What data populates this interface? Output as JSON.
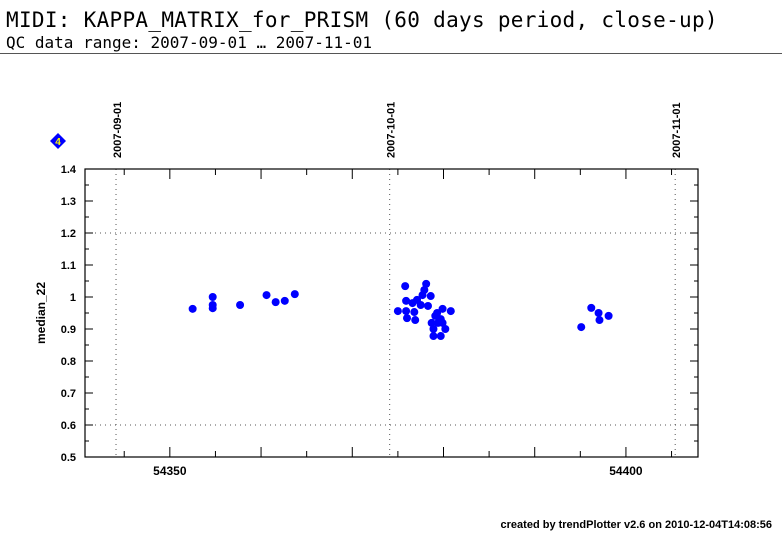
{
  "header": {
    "title": "MIDI: KAPPA_MATRIX_for_PRISM (60 days period, close-up)",
    "subtitle": "QC data range: 2007-09-01 … 2007-11-01"
  },
  "footer": "created by trendPlotter v2.6 on 2010-12-04T14:08:56",
  "marker_label": "4",
  "colors": {
    "points": "#0000ff",
    "marker_fill": "#0000ff",
    "marker_text": "#ffff00"
  },
  "chart_data": {
    "type": "scatter",
    "xlabel": "",
    "ylabel": "median_22",
    "xlim": [
      54340.7,
      54407.9
    ],
    "ylim": [
      0.5,
      1.4
    ],
    "xticks": [
      54350,
      54400
    ],
    "yticks": [
      0.5,
      0.6,
      0.7,
      0.8,
      0.9,
      1,
      1.1,
      1.2,
      1.3,
      1.4
    ],
    "yticklabels": [
      "0.5",
      "0.6",
      "0.7",
      "0.8",
      "0.9",
      "1",
      "1.1",
      "1.2",
      "1.3",
      "1.4"
    ],
    "hlines": [
      1.2,
      0.6
    ],
    "date_markers": [
      {
        "x": 54344.1,
        "label": "2007-09-01"
      },
      {
        "x": 54374.1,
        "label": "2007-10-01"
      },
      {
        "x": 54405.4,
        "label": "2007-11-01"
      }
    ],
    "points": [
      [
        54352.5,
        0.963
      ],
      [
        54354.7,
        1.0
      ],
      [
        54354.7,
        0.975
      ],
      [
        54354.7,
        0.965
      ],
      [
        54357.7,
        0.975
      ],
      [
        54360.6,
        1.006
      ],
      [
        54361.6,
        0.984
      ],
      [
        54362.6,
        0.988
      ],
      [
        54363.7,
        1.009
      ],
      [
        54375.0,
        0.956
      ],
      [
        54375.8,
        1.034
      ],
      [
        54375.9,
        0.988
      ],
      [
        54375.9,
        0.956
      ],
      [
        54376.0,
        0.934
      ],
      [
        54376.6,
        0.981
      ],
      [
        54376.8,
        0.953
      ],
      [
        54376.9,
        0.928
      ],
      [
        54377.1,
        0.991
      ],
      [
        54377.5,
        0.975
      ],
      [
        54377.7,
        1.006
      ],
      [
        54377.9,
        1.022
      ],
      [
        54378.1,
        1.041
      ],
      [
        54378.3,
        0.972
      ],
      [
        54378.6,
        1.003
      ],
      [
        54378.7,
        0.919
      ],
      [
        54378.9,
        0.878
      ],
      [
        54378.9,
        0.9
      ],
      [
        54379.1,
        0.941
      ],
      [
        54379.4,
        0.919
      ],
      [
        54379.7,
        0.931
      ],
      [
        54379.9,
        0.963
      ],
      [
        54379.9,
        0.919
      ],
      [
        54380.2,
        0.9
      ],
      [
        54379.7,
        0.878
      ],
      [
        54380.8,
        0.956
      ],
      [
        54379.3,
        0.95
      ],
      [
        54395.1,
        0.906
      ],
      [
        54396.2,
        0.966
      ],
      [
        54397.0,
        0.95
      ],
      [
        54397.1,
        0.928
      ],
      [
        54398.1,
        0.941
      ]
    ]
  }
}
